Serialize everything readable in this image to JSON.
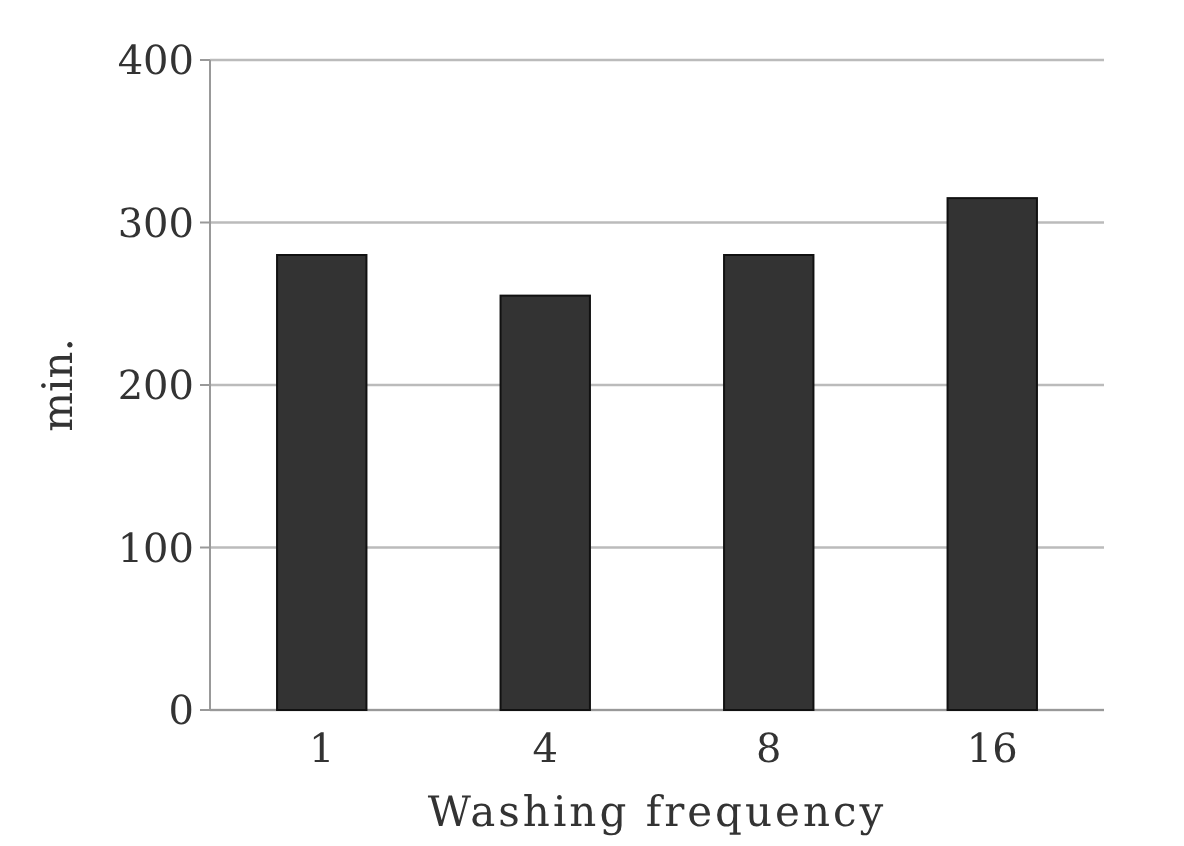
{
  "chart_data": {
    "type": "bar",
    "xlabel": "Washing frequency",
    "ylabel": "min.",
    "categories": [
      "1",
      "4",
      "8",
      "16"
    ],
    "values": [
      280,
      255,
      280,
      315
    ],
    "color": "#333333",
    "ylim": [
      0,
      400
    ],
    "yticks": [
      0,
      100,
      200,
      300,
      400
    ],
    "grid": "y"
  }
}
